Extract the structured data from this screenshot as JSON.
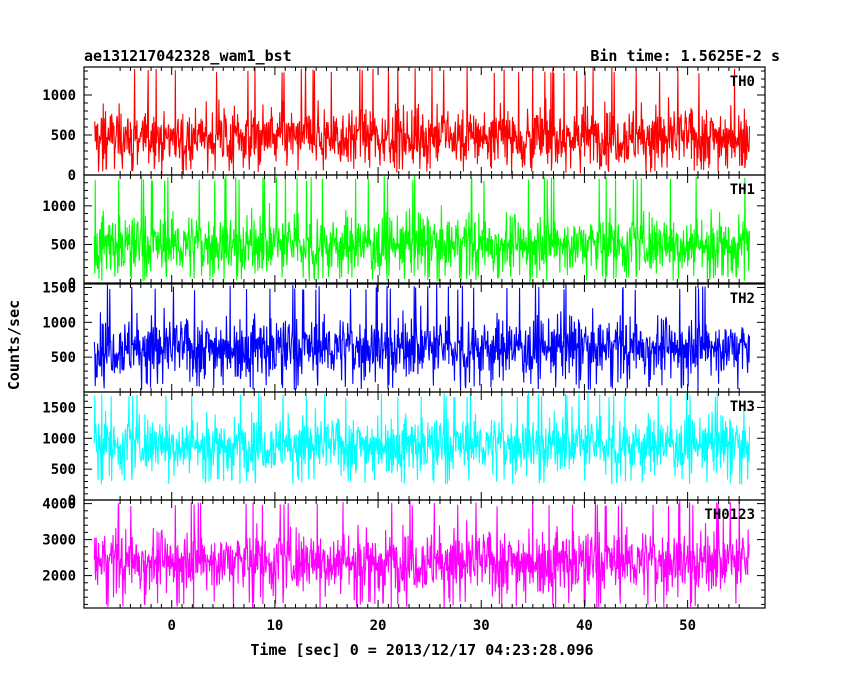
{
  "chart_data": {
    "type": "line",
    "title": "ae131217042328_wam1_bst",
    "subtitle": "Bin time: 1.5625E-2 s",
    "xlabel": "Time [sec] 0 = 2013/12/17 04:23:28.096",
    "ylabel": "Counts/sec",
    "xlim": [
      -8.5,
      57.5
    ],
    "x_ticks": [
      "0",
      "10",
      "20",
      "30",
      "40",
      "50"
    ],
    "x_tick_values": [
      0,
      10,
      20,
      30,
      40,
      50
    ],
    "x_data_range": [
      -7.5,
      56.0
    ],
    "grid": false,
    "series": [
      {
        "name": "TH0",
        "color": "#ff0000",
        "ylim": [
          0,
          1350
        ],
        "y_ticks": [
          "0",
          "500",
          "1000"
        ],
        "y_tick_values": [
          0,
          500,
          1000
        ],
        "mean": 480,
        "spread": 260,
        "min": 20,
        "max": 1350
      },
      {
        "name": "TH1",
        "color": "#00ff00",
        "ylim": [
          0,
          1400
        ],
        "y_ticks": [
          "0",
          "500",
          "1000"
        ],
        "y_tick_values": [
          0,
          500,
          1000
        ],
        "mean": 500,
        "spread": 270,
        "min": 20,
        "max": 1400
      },
      {
        "name": "TH2",
        "color": "#0000ff",
        "ylim": [
          0,
          1550
        ],
        "y_ticks": [
          "500",
          "1000",
          "1500"
        ],
        "y_tick_values": [
          500,
          1000,
          1500
        ],
        "mean": 640,
        "spread": 300,
        "min": 30,
        "max": 1550
      },
      {
        "name": "TH3",
        "color": "#00ffff",
        "ylim": [
          0,
          1750
        ],
        "y_ticks": [
          "0",
          "500",
          "1000",
          "1500"
        ],
        "y_tick_values": [
          0,
          500,
          1000,
          1500
        ],
        "mean": 900,
        "spread": 310,
        "min": 250,
        "max": 1750
      },
      {
        "name": "TH0123",
        "color": "#ff00ff",
        "ylim": [
          1100,
          4100
        ],
        "y_ticks": [
          "2000",
          "3000",
          "4000"
        ],
        "y_tick_values": [
          2000,
          3000,
          4000
        ],
        "mean": 2400,
        "spread": 600,
        "min": 1100,
        "max": 4100
      }
    ]
  }
}
